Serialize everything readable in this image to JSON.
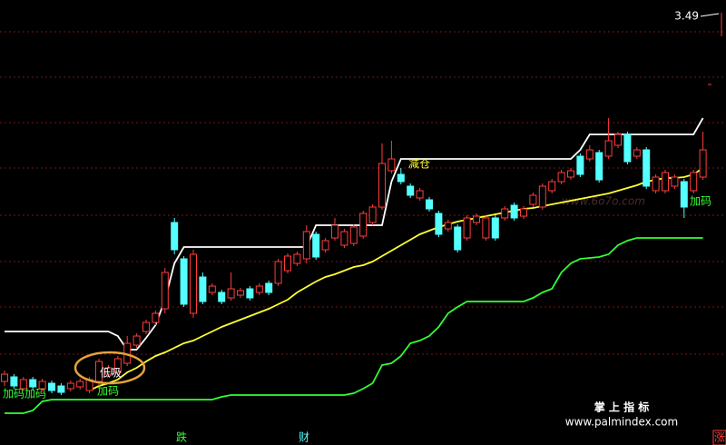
{
  "chart_data": {
    "type": "candlestick",
    "ylim": [
      1.59,
      3.55
    ],
    "up_color": "#ff3c3c",
    "down_color": "#54ffff",
    "open": [
      1.87,
      1.89,
      1.838,
      1.878,
      1.838,
      1.862,
      1.85,
      1.838,
      1.846,
      1.83,
      1.87,
      1.902,
      1.91,
      1.95,
      2.03,
      2.09,
      2.13,
      2.19,
      2.57,
      2.41,
      2.17,
      2.33,
      2.262,
      2.262,
      2.238,
      2.25,
      2.278,
      2.262,
      2.302,
      2.302,
      2.358,
      2.39,
      2.41,
      2.518,
      2.45,
      2.502,
      2.47,
      2.478,
      2.51,
      2.57,
      2.638,
      2.798,
      2.782,
      2.73,
      2.678,
      2.67,
      2.61,
      2.542,
      2.55,
      2.502,
      2.57,
      2.502,
      2.59,
      2.59,
      2.646,
      2.598,
      2.65,
      2.638,
      2.71,
      2.75,
      2.77,
      2.862,
      2.85,
      2.878,
      2.862,
      2.91,
      2.958,
      2.862,
      2.89,
      2.71,
      2.71,
      2.73,
      2.75,
      2.71,
      2.77
    ],
    "close": [
      1.902,
      1.85,
      1.878,
      1.846,
      1.87,
      1.83,
      1.822,
      1.862,
      1.87,
      1.878,
      1.958,
      1.93,
      1.97,
      2.038,
      2.07,
      2.13,
      2.17,
      2.35,
      2.45,
      2.21,
      2.43,
      2.222,
      2.29,
      2.222,
      2.278,
      2.27,
      2.238,
      2.29,
      2.262,
      2.398,
      2.422,
      2.43,
      2.53,
      2.418,
      2.49,
      2.558,
      2.53,
      2.55,
      2.61,
      2.638,
      2.83,
      2.85,
      2.75,
      2.69,
      2.71,
      2.63,
      2.518,
      2.57,
      2.45,
      2.59,
      2.598,
      2.59,
      2.502,
      2.63,
      2.59,
      2.63,
      2.69,
      2.73,
      2.75,
      2.79,
      2.798,
      2.782,
      2.89,
      2.758,
      2.93,
      2.958,
      2.838,
      2.89,
      2.73,
      2.77,
      2.79,
      2.77,
      2.638,
      2.79,
      2.89
    ],
    "high": [
      1.918,
      1.902,
      1.89,
      1.89,
      1.882,
      1.874,
      1.862,
      1.874,
      1.882,
      1.89,
      1.97,
      1.942,
      1.982,
      2.07,
      2.082,
      2.142,
      2.182,
      2.37,
      2.59,
      2.422,
      2.45,
      2.35,
      2.302,
      2.274,
      2.35,
      2.282,
      2.29,
      2.302,
      2.314,
      2.41,
      2.434,
      2.442,
      2.558,
      2.53,
      2.502,
      2.59,
      2.542,
      2.562,
      2.622,
      2.65,
      2.918,
      2.93,
      2.81,
      2.742,
      2.722,
      2.682,
      2.622,
      2.582,
      2.562,
      2.602,
      2.61,
      2.602,
      2.602,
      2.642,
      2.658,
      2.642,
      2.702,
      2.742,
      2.762,
      2.802,
      2.81,
      2.874,
      2.91,
      2.89,
      3.03,
      2.97,
      2.97,
      2.902,
      2.902,
      2.782,
      2.802,
      2.782,
      2.762,
      2.802,
      2.97
    ],
    "low": [
      1.85,
      1.838,
      1.826,
      1.834,
      1.826,
      1.818,
      1.81,
      1.826,
      1.834,
      1.818,
      1.85,
      1.89,
      1.898,
      1.938,
      2.018,
      2.078,
      2.118,
      2.17,
      2.43,
      2.198,
      2.15,
      2.21,
      2.25,
      2.21,
      2.226,
      2.238,
      2.226,
      2.25,
      2.25,
      2.29,
      2.346,
      2.378,
      2.39,
      2.406,
      2.438,
      2.49,
      2.458,
      2.466,
      2.498,
      2.558,
      2.626,
      2.786,
      2.738,
      2.678,
      2.666,
      2.618,
      2.506,
      2.53,
      2.438,
      2.49,
      2.558,
      2.49,
      2.49,
      2.578,
      2.578,
      2.586,
      2.638,
      2.626,
      2.698,
      2.738,
      2.758,
      2.77,
      2.838,
      2.746,
      2.85,
      2.898,
      2.826,
      2.85,
      2.718,
      2.698,
      2.698,
      2.718,
      2.59,
      2.698,
      2.758
    ],
    "lines": [
      {
        "color": "#ffffff",
        "values": [
          2.09,
          2.09,
          2.09,
          2.09,
          2.09,
          2.09,
          2.09,
          2.09,
          2.09,
          2.09,
          2.09,
          2.09,
          2.07,
          2.01,
          2.01,
          2.062,
          2.118,
          2.23,
          2.39,
          2.462,
          2.462,
          2.462,
          2.462,
          2.462,
          2.462,
          2.462,
          2.462,
          2.462,
          2.462,
          2.462,
          2.462,
          2.462,
          2.462,
          2.558,
          2.558,
          2.558,
          2.558,
          2.558,
          2.558,
          2.558,
          2.558,
          2.75,
          2.85,
          2.85,
          2.85,
          2.85,
          2.85,
          2.85,
          2.85,
          2.85,
          2.85,
          2.85,
          2.85,
          2.85,
          2.85,
          2.85,
          2.85,
          2.85,
          2.85,
          2.85,
          2.85,
          2.89,
          2.958,
          2.958,
          2.958,
          2.958,
          2.958,
          2.958,
          2.958,
          2.958,
          2.958,
          2.958,
          2.958,
          2.958,
          3.03
        ]
      },
      {
        "color": "#ffff33",
        "values": [
          null,
          null,
          null,
          null,
          null,
          null,
          null,
          null,
          null,
          1.83,
          1.85,
          1.862,
          1.878,
          1.91,
          1.93,
          1.958,
          1.982,
          1.998,
          2.018,
          2.038,
          2.05,
          2.07,
          2.09,
          2.11,
          2.126,
          2.142,
          2.158,
          2.174,
          2.19,
          2.21,
          2.23,
          2.262,
          2.286,
          2.31,
          2.33,
          2.342,
          2.358,
          2.374,
          2.382,
          2.398,
          2.422,
          2.446,
          2.47,
          2.494,
          2.518,
          2.534,
          2.55,
          2.562,
          2.574,
          2.582,
          2.59,
          2.598,
          2.606,
          2.614,
          2.622,
          2.63,
          2.634,
          2.642,
          2.65,
          2.658,
          2.666,
          2.674,
          2.682,
          2.69,
          2.698,
          2.71,
          2.722,
          2.734,
          2.75,
          2.758,
          2.766,
          2.766,
          2.77,
          2.782,
          2.81
        ]
      },
      {
        "color": "#33ff33",
        "values": [
          1.73,
          1.73,
          1.73,
          1.742,
          1.782,
          1.79,
          1.79,
          1.79,
          1.79,
          1.79,
          1.79,
          1.79,
          1.79,
          1.79,
          1.79,
          1.79,
          1.79,
          1.79,
          1.79,
          1.79,
          1.79,
          1.79,
          1.79,
          1.802,
          1.81,
          1.81,
          1.81,
          1.81,
          1.81,
          1.81,
          1.81,
          1.81,
          1.81,
          1.81,
          1.81,
          1.81,
          1.81,
          1.818,
          1.838,
          1.862,
          1.942,
          1.95,
          1.982,
          2.038,
          2.05,
          2.07,
          2.11,
          2.17,
          2.198,
          2.222,
          2.222,
          2.222,
          2.222,
          2.222,
          2.222,
          2.222,
          2.238,
          2.262,
          2.278,
          2.35,
          2.39,
          2.41,
          2.414,
          2.418,
          2.43,
          2.47,
          2.49,
          2.502,
          2.502,
          2.502,
          2.502,
          2.502,
          2.502,
          2.502,
          2.502
        ]
      }
    ],
    "last_price": 3.49,
    "annotations": [
      "加码加码",
      "低吸",
      "加码",
      "减仓",
      "加码"
    ],
    "watermark": "www.6o7o.com"
  },
  "footer": {
    "labels": [
      "跌",
      "财",
      "涨"
    ],
    "brand": "掌 上 指 标",
    "url": "www.palmindex.com"
  }
}
